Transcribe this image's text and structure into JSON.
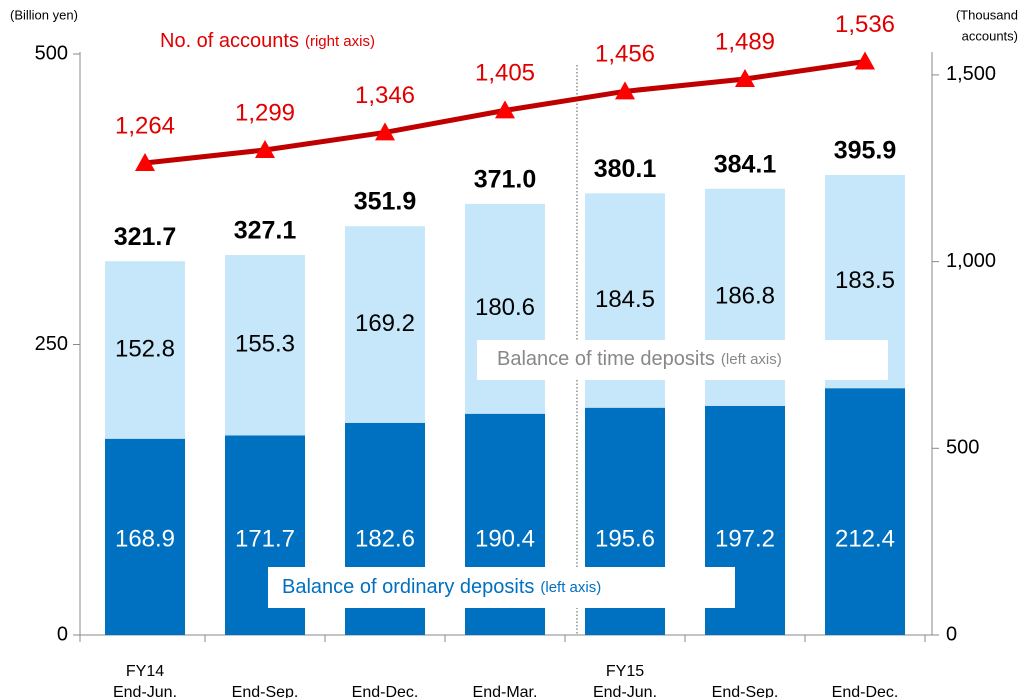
{
  "chart_data": {
    "type": "bar-line",
    "categories": [
      [
        "FY14",
        "End-Jun."
      ],
      [
        "End-Sep."
      ],
      [
        "End-Dec."
      ],
      [
        "End-Mar."
      ],
      [
        "FY15",
        "End-Jun."
      ],
      [
        "End-Sep."
      ],
      [
        "End-Dec."
      ]
    ],
    "ylabel": "(Billion yen)",
    "y2label": [
      "(Thousand",
      "accounts)"
    ],
    "ylim": [
      0,
      500
    ],
    "yticks": [
      0,
      250,
      500
    ],
    "y2lim": [
      0,
      1556
    ],
    "y2ticks": [
      0,
      500,
      {
        "value": 1000,
        "label": "1,000"
      },
      {
        "value": 1500,
        "label": "1,500"
      }
    ],
    "series": [
      {
        "name": "Balance of ordinary deposits",
        "axis_note": "(left axis)",
        "color": "#0070c0",
        "values": [
          168.9,
          171.7,
          182.6,
          190.4,
          195.6,
          197.2,
          212.4
        ]
      },
      {
        "name": "Balance of time deposits",
        "axis_note": "(left axis)",
        "color": "#c6e7fa",
        "values": [
          152.8,
          155.3,
          169.2,
          180.6,
          184.5,
          186.8,
          183.5
        ]
      },
      {
        "name": "No. of accounts",
        "axis_note": "(right axis)",
        "color": "#c00000",
        "axis": "y2",
        "values": [
          1264,
          1299,
          1346,
          1405,
          1456,
          1489,
          1536
        ],
        "value_labels": [
          "1,264",
          "1,299",
          "1,346",
          "1,405",
          "1,456",
          "1,489",
          "1,536"
        ]
      }
    ],
    "totals": [
      321.7,
      327.1,
      351.9,
      371.0,
      380.1,
      384.1,
      395.9
    ],
    "total_labels": [
      "321.7",
      "327.1",
      "351.9",
      "371.0",
      "380.1",
      "384.1",
      "395.9"
    ]
  }
}
